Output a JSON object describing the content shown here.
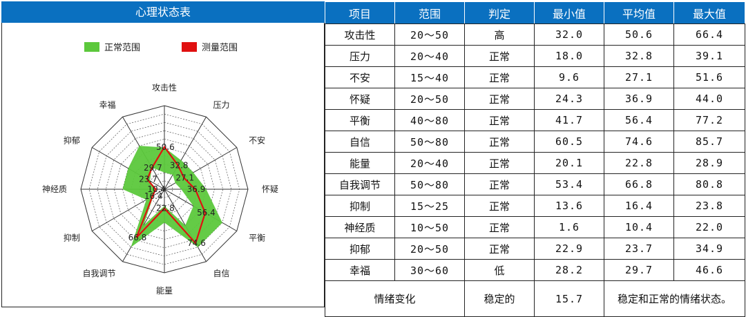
{
  "title": "心理状态表",
  "headers": [
    "项目",
    "范围",
    "判定",
    "最小值",
    "平均值",
    "最大值"
  ],
  "rows": [
    {
      "item": "攻击性",
      "range": "20～50",
      "verdict": "高",
      "status": "high",
      "min": "32.0",
      "avg": "50.6",
      "max": "66.4"
    },
    {
      "item": "压力",
      "range": "20～40",
      "verdict": "正常",
      "status": "normal",
      "min": "18.0",
      "avg": "32.8",
      "max": "39.1"
    },
    {
      "item": "不安",
      "range": "15～40",
      "verdict": "正常",
      "status": "normal",
      "min": "9.6",
      "avg": "27.1",
      "max": "51.6"
    },
    {
      "item": "怀疑",
      "range": "20～50",
      "verdict": "正常",
      "status": "normal",
      "min": "24.3",
      "avg": "36.9",
      "max": "44.0"
    },
    {
      "item": "平衡",
      "range": "40～80",
      "verdict": "正常",
      "status": "normal",
      "min": "41.7",
      "avg": "56.4",
      "max": "77.2"
    },
    {
      "item": "自信",
      "range": "50～80",
      "verdict": "正常",
      "status": "normal",
      "min": "60.5",
      "avg": "74.6",
      "max": "85.7"
    },
    {
      "item": "能量",
      "range": "20～40",
      "verdict": "正常",
      "status": "normal",
      "min": "20.1",
      "avg": "22.8",
      "max": "28.9"
    },
    {
      "item": "自我调节",
      "range": "50～80",
      "verdict": "正常",
      "status": "normal",
      "min": "53.4",
      "avg": "66.8",
      "max": "80.8"
    },
    {
      "item": "抑制",
      "range": "15～25",
      "verdict": "正常",
      "status": "normal",
      "min": "13.6",
      "avg": "16.4",
      "max": "23.8"
    },
    {
      "item": "神经质",
      "range": "10～50",
      "verdict": "正常",
      "status": "normal",
      "min": "1.6",
      "avg": "10.4",
      "max": "22.0"
    },
    {
      "item": "抑郁",
      "range": "20～50",
      "verdict": "正常",
      "status": "normal",
      "min": "22.9",
      "avg": "23.7",
      "max": "34.9"
    },
    {
      "item": "幸福",
      "range": "30～60",
      "verdict": "低",
      "status": "low",
      "min": "28.2",
      "avg": "29.7",
      "max": "46.6"
    }
  ],
  "summary": {
    "label": "情绪变化",
    "verdict": "稳定的",
    "value": "15.7",
    "note": "稳定和正常的情绪状态。"
  },
  "colors": {
    "header": "#0a70c0",
    "high": "#ff7a12",
    "normal": "#63c94a",
    "low": "#9b9bff",
    "measure": "#e01010",
    "normal_area": "#5cc83c"
  },
  "chart_data": {
    "type": "radar",
    "axes": [
      "攻击性",
      "压力",
      "不安",
      "怀疑",
      "平衡",
      "自信",
      "能量",
      "自我调节",
      "抑制",
      "神经质",
      "抑郁",
      "幸福"
    ],
    "rmax": 100,
    "legend": {
      "normal": "正常范围",
      "measure": "测量范围"
    },
    "normal_range": {
      "low": [
        20,
        20,
        15,
        20,
        40,
        50,
        20,
        50,
        15,
        10,
        20,
        30
      ],
      "high": [
        50,
        40,
        40,
        50,
        80,
        80,
        40,
        80,
        25,
        50,
        50,
        60
      ]
    },
    "measure": [
      50.6,
      32.8,
      27.1,
      36.9,
      56.4,
      74.6,
      22.8,
      66.8,
      16.4,
      10.4,
      23.7,
      29.7
    ],
    "value_labels": [
      "50.6",
      "32.8",
      "27.1",
      "36.9",
      "56.4",
      "74.6",
      "22.8",
      "66.8",
      "16.4",
      "10.4",
      "23.7",
      "29.7"
    ],
    "legend_position": "top"
  }
}
